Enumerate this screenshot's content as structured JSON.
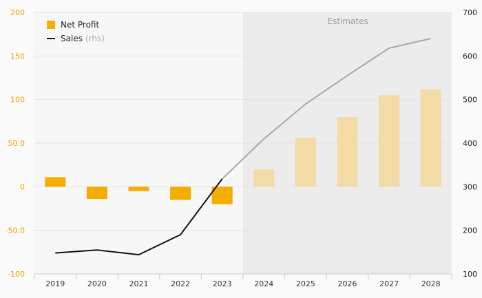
{
  "chart_data": {
    "type": "bar+line",
    "categories": [
      "2019",
      "2020",
      "2021",
      "2022",
      "2023",
      "2024",
      "2025",
      "2026",
      "2027",
      "2028"
    ],
    "estimates_from_index": 5,
    "estimates_label": "Estimates",
    "series": [
      {
        "name": "Net Profit",
        "type": "bar",
        "axis": "left",
        "values": [
          11,
          -14,
          -5,
          -15,
          -20,
          20,
          56,
          80,
          105,
          112
        ]
      },
      {
        "name": "Sales",
        "name_suffix": "(rhs)",
        "type": "line",
        "axis": "right",
        "values": [
          148,
          155,
          144,
          190,
          318,
          410,
          490,
          555,
          618,
          640
        ]
      }
    ],
    "left_axis": {
      "ylim": [
        -100,
        200
      ],
      "ticks": [
        "-100",
        "-50.0",
        "0",
        "50.0",
        "100",
        "150",
        "200"
      ],
      "tick_values": [
        -100,
        -50,
        0,
        50,
        100,
        150,
        200
      ]
    },
    "right_axis": {
      "ylim": [
        100,
        700
      ],
      "ticks": [
        "100",
        "200",
        "300",
        "400",
        "500",
        "600",
        "700"
      ],
      "tick_values": [
        100,
        200,
        300,
        400,
        500,
        600,
        700
      ]
    },
    "grid": true,
    "legend_position": "top-left",
    "colors": {
      "bar": "#f5ad00",
      "bar_estimate": "#f3dba6",
      "line": "#111111",
      "line_estimate": "#a8a8a8",
      "left_tick": "#e6a600",
      "right_tick": "#222222",
      "estimate_bg": "#ececec"
    }
  }
}
